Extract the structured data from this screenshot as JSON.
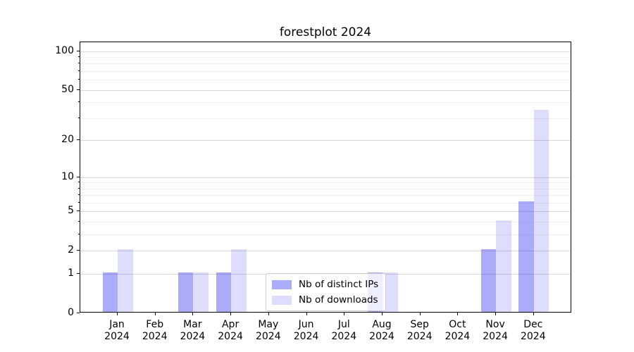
{
  "title": "forestplot 2024",
  "chart_data": {
    "type": "bar",
    "title": "forestplot 2024",
    "categories": [
      "Jan",
      "Feb",
      "Mar",
      "Apr",
      "May",
      "Jun",
      "Jul",
      "Aug",
      "Sep",
      "Oct",
      "Nov",
      "Dec"
    ],
    "year_label": "2024",
    "series": [
      {
        "name": "Nb of distinct IPs",
        "color": "rgba(0,0,230,0.33)",
        "values": [
          1,
          0,
          1,
          1,
          0,
          0,
          0,
          1,
          0,
          0,
          2,
          6
        ]
      },
      {
        "name": "Nb of downloads",
        "color": "rgba(0,0,230,0.13)",
        "values": [
          2,
          0,
          1,
          2,
          0,
          0,
          0,
          1,
          0,
          0,
          4,
          34
        ]
      }
    ],
    "xlabel": "",
    "ylabel": "",
    "yscale": "log1p",
    "ylim": [
      0,
      117
    ],
    "ytick_values": [
      0,
      1,
      2,
      5,
      10,
      20,
      50,
      100
    ],
    "ytick_labels": [
      "0",
      "1",
      "2",
      "5",
      "10",
      "20",
      "50",
      "100"
    ],
    "minor_ytick_values": [
      3,
      4,
      6,
      7,
      8,
      9,
      30,
      40,
      60,
      70,
      80,
      90
    ],
    "grid": "major+minor horizontal",
    "legend_position": "lower center, overlapping Aug bars"
  },
  "colors": {
    "bar_distinct_ips": "rgba(0,0,230,0.33)",
    "bar_downloads": "rgba(0,0,230,0.13)",
    "grid_major": "#d8d8d8",
    "grid_minor": "#f0f0f0",
    "axis": "#000000",
    "legend_border": "#cccccc",
    "legend_background": "rgba(255,255,255,0.8)",
    "text": "#000000"
  }
}
